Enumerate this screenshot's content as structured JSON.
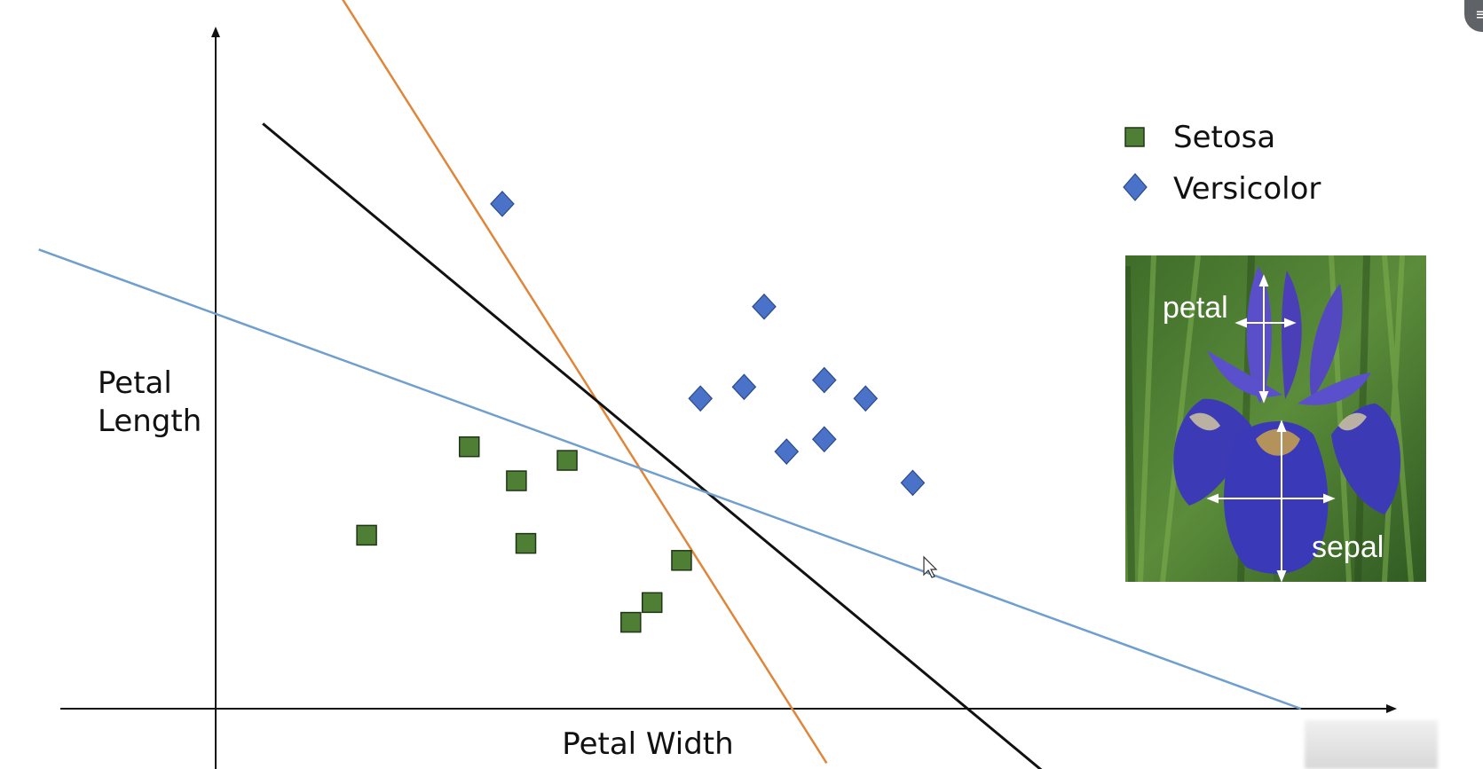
{
  "chart_data": {
    "type": "scatter",
    "title": "",
    "xlabel": "Petal Width",
    "ylabel_lines": [
      "Petal",
      "Length"
    ],
    "xlim": [
      0,
      100
    ],
    "ylim": [
      0,
      100
    ],
    "grid": false,
    "legend_placement": "top-right",
    "series": [
      {
        "name": "Setosa",
        "marker": "square",
        "color": "#4e7f35",
        "points": [
          [
            12.8,
            25.5
          ],
          [
            21.5,
            38.5
          ],
          [
            25.5,
            33.5
          ],
          [
            26.3,
            24.3
          ],
          [
            29.8,
            36.5
          ],
          [
            35.2,
            12.7
          ],
          [
            37,
            15.6
          ],
          [
            39.5,
            21.8
          ]
        ]
      },
      {
        "name": "Versicolor",
        "marker": "diamond",
        "color": "#4a72c8",
        "points": [
          [
            24.3,
            74.2
          ],
          [
            41.1,
            45.6
          ],
          [
            44.8,
            47.3
          ],
          [
            46.5,
            59.1
          ],
          [
            48.4,
            37.8
          ],
          [
            51.6,
            39.6
          ],
          [
            51.6,
            48.3
          ],
          [
            55.1,
            45.6
          ],
          [
            59.1,
            33.2
          ]
        ]
      }
    ],
    "lines": [
      {
        "color": "#e0863a",
        "from": [
          10.5,
          105
        ],
        "to": [
          51.8,
          -8
        ]
      },
      {
        "color": "#111111",
        "from": [
          4,
          86
        ],
        "to": [
          70,
          -9
        ]
      },
      {
        "color": "#6f9fce",
        "from": [
          -15,
          67.5
        ],
        "to": [
          92,
          0
        ]
      }
    ]
  },
  "inset_photo": {
    "labels": {
      "petal": "petal",
      "sepal": "sepal"
    }
  }
}
